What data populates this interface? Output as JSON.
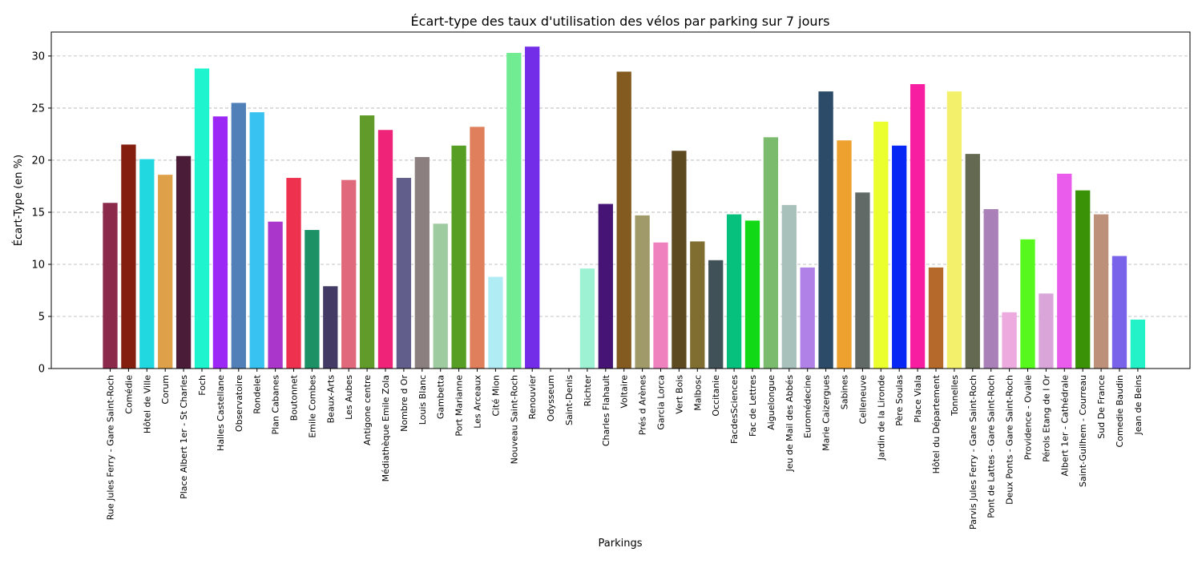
{
  "chart_data": {
    "type": "bar",
    "title": "Écart-type des taux d'utilisation des vélos par parking sur 7 jours",
    "xlabel": "Parkings",
    "ylabel": "Écart-Type (en %)",
    "ylim": [
      0,
      32.3
    ],
    "yticks": [
      0,
      5,
      10,
      15,
      20,
      25,
      30
    ],
    "grid": "y-dashed",
    "categories": [
      "Rue Jules Ferry - Gare Saint-Roch",
      "Comédie",
      "Hôtel de Ville",
      "Corum",
      "Place Albert 1er - St Charles",
      "Foch",
      "Halles Castellane",
      "Observatoire",
      "Rondelet",
      "Plan Cabanes",
      "Boutonnet",
      "Emile Combes",
      "Beaux-Arts",
      "Les Aubes",
      "Antigone centre",
      "Médiathèque Emile Zola",
      "Nombre d Or",
      "Louis Blanc",
      "Gambetta",
      "Port Marianne",
      "Les Arceaux",
      "Cité Mion",
      "Nouveau Saint-Roch",
      "Renouvier",
      "Odysseum",
      "Saint-Denis",
      "Richter",
      "Charles Flahault",
      "Voltaire",
      "Prés d Arènes",
      "Garcia Lorca",
      "Vert Bois",
      "Malbosc",
      "Occitanie",
      "FacdesSciences",
      "Fac de Lettres",
      "Aiguelongue",
      "Jeu de Mail des Abbés",
      "Euromédecine",
      "Marie Caizergues",
      "Sabines",
      "Celleneuve",
      "Jardin de la Lironde",
      "Père Soulas",
      "Place Viala",
      "Hôtel du Département",
      "Tonnelles",
      "Parvis Jules Ferry - Gare Saint-Roch",
      "Pont de Lattes - Gare Saint-Roch",
      "Deux Ponts - Gare Saint-Roch",
      "Providence - Ovalie",
      "Pérols Etang de l Or",
      "Albert 1er - Cathédrale",
      "Saint-Guilhem - Courreau",
      "Sud De France",
      "Comedie Baudin",
      "Jean de Beins"
    ],
    "values": [
      15.9,
      21.5,
      20.1,
      18.6,
      20.4,
      28.8,
      24.2,
      25.5,
      24.6,
      14.1,
      18.3,
      13.3,
      7.9,
      18.1,
      24.3,
      22.9,
      18.3,
      20.3,
      13.9,
      21.4,
      23.2,
      8.8,
      30.3,
      30.9,
      0,
      0,
      9.6,
      15.8,
      28.5,
      14.7,
      12.1,
      20.9,
      12.2,
      10.4,
      14.8,
      14.2,
      22.2,
      15.7,
      9.7,
      26.6,
      21.9,
      16.9,
      23.7,
      21.4,
      27.3,
      9.7,
      26.6,
      20.6,
      15.3,
      5.4,
      12.4,
      7.2,
      18.7,
      17.1,
      14.8,
      10.8,
      4.7
    ],
    "colors": [
      "#8b2a4a",
      "#841f0f",
      "#22d8e0",
      "#dfa04a",
      "#4b1c38",
      "#1ef5cf",
      "#9b28f4",
      "#5080b7",
      "#37c2f1",
      "#aa36cc",
      "#ef3150",
      "#1b9165",
      "#433a66",
      "#e0697b",
      "#619c2a",
      "#ef2479",
      "#625e8b",
      "#8b7f80",
      "#9ecb9f",
      "#579e24",
      "#e07f5c",
      "#b0ecf3",
      "#71ec92",
      "#732ce8",
      "#ffffff",
      "#ffffff",
      "#9df2d3",
      "#451474",
      "#835b20",
      "#a09a6a",
      "#ef81bf",
      "#5d4a20",
      "#7f6e30",
      "#405257",
      "#06c07e",
      "#12d915",
      "#7abb6e",
      "#a8c2bb",
      "#b082e8",
      "#2c4b69",
      "#eea12e",
      "#616a66",
      "#ecff2e",
      "#0727f5",
      "#f81ea1",
      "#b56a2b",
      "#f3f06c",
      "#646a51",
      "#a980b7",
      "#ecaade",
      "#57f81d",
      "#daa6da",
      "#ea5ceb",
      "#3a9307",
      "#bd907a",
      "#7963ea",
      "#23f1c7"
    ]
  }
}
